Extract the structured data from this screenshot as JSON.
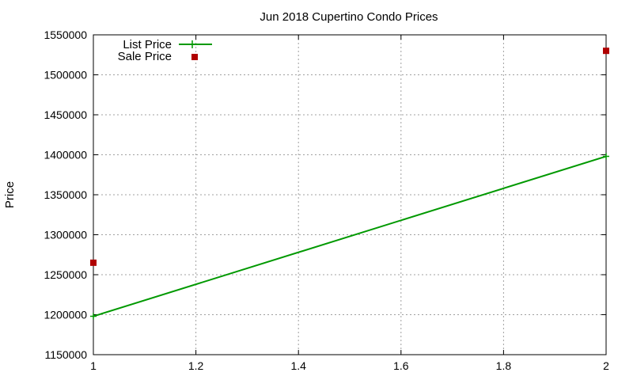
{
  "chart_data": {
    "type": "scatter",
    "title": "Jun 2018 Cupertino Condo Prices",
    "ylabel": "Price",
    "xlabel": "",
    "xlim": [
      1,
      2
    ],
    "ylim": [
      1150000,
      1550000
    ],
    "x_ticks": [
      1,
      1.2,
      1.4,
      1.6,
      1.8,
      2
    ],
    "x_tick_labels": [
      "1",
      "1.2",
      "1.4",
      "1.6",
      "1.8",
      "2"
    ],
    "y_ticks": [
      1150000,
      1200000,
      1250000,
      1300000,
      1350000,
      1400000,
      1450000,
      1500000,
      1550000
    ],
    "y_tick_labels": [
      "1150000",
      "1200000",
      "1250000",
      "1300000",
      "1350000",
      "1400000",
      "1450000",
      "1500000",
      "1550000"
    ],
    "grid": true,
    "legend_position": "top-left",
    "series": [
      {
        "name": "List Price",
        "style": "linespoints",
        "color": "#009900",
        "points": [
          {
            "x": 1,
            "y": 1198000
          },
          {
            "x": 2,
            "y": 1398000
          }
        ]
      },
      {
        "name": "Sale Price",
        "style": "points",
        "color": "#b00000",
        "points": [
          {
            "x": 1,
            "y": 1265000
          },
          {
            "x": 2,
            "y": 1530000
          }
        ]
      }
    ]
  }
}
